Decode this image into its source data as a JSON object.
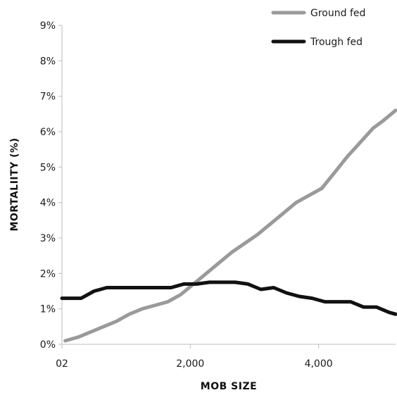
{
  "chart_data": {
    "type": "line",
    "title": "",
    "xlabel": "MOB SIZE",
    "ylabel": "MORTALIITY (%)",
    "xlim": [
      0,
      5200
    ],
    "ylim": [
      0,
      9
    ],
    "x_ticks": [
      {
        "value": 0,
        "label": "02"
      },
      {
        "value": 2000,
        "label": "2,000"
      },
      {
        "value": 4000,
        "label": "4,000"
      }
    ],
    "y_ticks": [
      {
        "value": 0,
        "label": "0%"
      },
      {
        "value": 1,
        "label": "1%"
      },
      {
        "value": 2,
        "label": "2%"
      },
      {
        "value": 3,
        "label": "3%"
      },
      {
        "value": 4,
        "label": "4%"
      },
      {
        "value": 5,
        "label": "5%"
      },
      {
        "value": 6,
        "label": "6%"
      },
      {
        "value": 7,
        "label": "7%"
      },
      {
        "value": 8,
        "label": "8%"
      },
      {
        "value": 9,
        "label": "9%"
      }
    ],
    "grid": false,
    "legend_position": "top-right",
    "series": [
      {
        "name": "Ground fed",
        "color": "#9a9a9a",
        "x": [
          50,
          250,
          450,
          650,
          850,
          1050,
          1250,
          1450,
          1650,
          1850,
          2050,
          2250,
          2450,
          2650,
          2850,
          3050,
          3250,
          3450,
          3650,
          3850,
          4050,
          4250,
          4450,
          4650,
          4850,
          5000,
          5200
        ],
        "y": [
          0.1,
          0.2,
          0.35,
          0.5,
          0.65,
          0.85,
          1.0,
          1.1,
          1.2,
          1.4,
          1.7,
          2.0,
          2.3,
          2.6,
          2.85,
          3.1,
          3.4,
          3.7,
          4.0,
          4.2,
          4.4,
          4.85,
          5.3,
          5.7,
          6.1,
          6.3,
          6.6
        ]
      },
      {
        "name": "Trough fed",
        "color": "#111111",
        "x": [
          0,
          300,
          500,
          700,
          900,
          1100,
          1300,
          1500,
          1700,
          1900,
          2100,
          2300,
          2500,
          2700,
          2900,
          3100,
          3300,
          3500,
          3700,
          3900,
          4100,
          4300,
          4500,
          4700,
          4900,
          5100,
          5200
        ],
        "y": [
          1.3,
          1.3,
          1.5,
          1.6,
          1.6,
          1.6,
          1.6,
          1.6,
          1.6,
          1.7,
          1.7,
          1.75,
          1.75,
          1.75,
          1.7,
          1.55,
          1.6,
          1.45,
          1.35,
          1.3,
          1.2,
          1.2,
          1.2,
          1.05,
          1.05,
          0.9,
          0.85
        ]
      }
    ]
  }
}
